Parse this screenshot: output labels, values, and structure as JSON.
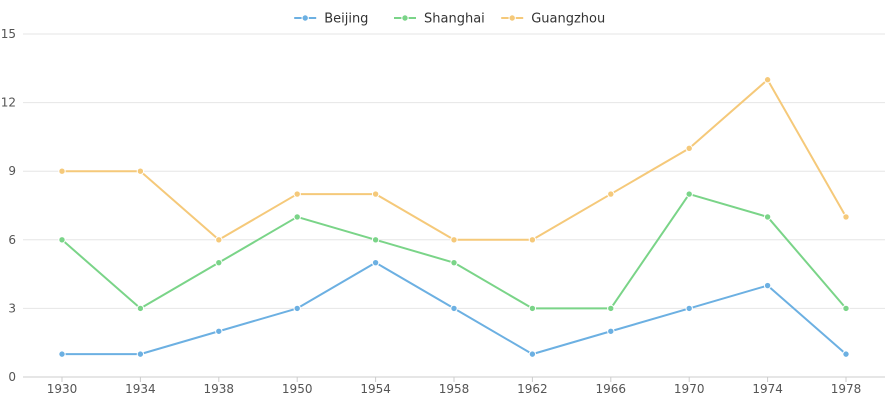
{
  "chart_data": {
    "type": "line",
    "categories": [
      "1930",
      "1934",
      "1938",
      "1950",
      "1954",
      "1958",
      "1962",
      "1966",
      "1970",
      "1974",
      "1978"
    ],
    "series": [
      {
        "name": "Beijing",
        "color": "#6cb0e2",
        "values": [
          1,
          1,
          2,
          3,
          5,
          3,
          1,
          2,
          3,
          4,
          1
        ]
      },
      {
        "name": "Shanghai",
        "color": "#7ad488",
        "values": [
          6,
          3,
          5,
          7,
          6,
          5,
          3,
          3,
          8,
          7,
          3
        ]
      },
      {
        "name": "Guangzhou",
        "color": "#f5c97a",
        "values": [
          9,
          9,
          6,
          8,
          8,
          6,
          6,
          8,
          10,
          13,
          7
        ]
      }
    ],
    "ylim": [
      0,
      15
    ],
    "yticks": [
      "0",
      "3",
      "6",
      "9",
      "12",
      "15"
    ],
    "grid": true,
    "legend_position": "top-center"
  }
}
